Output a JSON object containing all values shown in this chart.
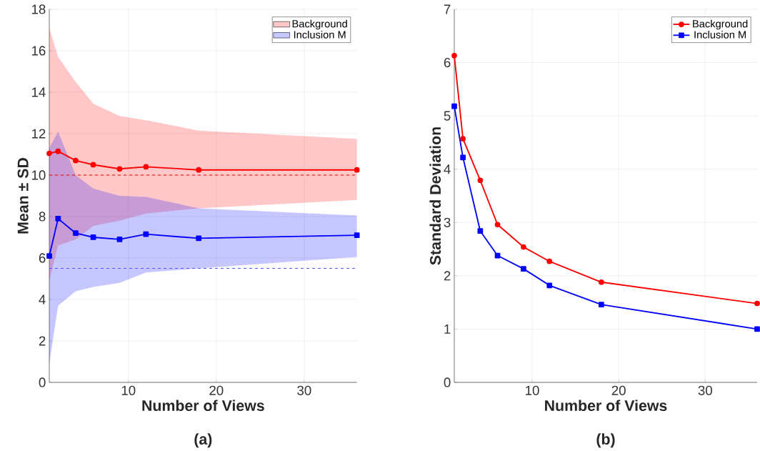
{
  "chart_data": [
    {
      "type": "line",
      "xlabel": "Number of Views",
      "ylabel": "Mean ± SD",
      "annotations": [
        "(a)"
      ],
      "x": [
        1,
        2,
        4,
        6,
        9,
        12,
        18,
        36
      ],
      "xlim": [
        1,
        36
      ],
      "xticks": [
        10,
        20,
        30
      ],
      "ylim": [
        0,
        18
      ],
      "yticks": [
        0,
        2,
        4,
        6,
        8,
        10,
        12,
        14,
        16,
        18
      ],
      "grid": true,
      "legend": "top right",
      "line_style": "solid",
      "series": [
        {
          "name": "Background",
          "color": "#ff0000",
          "marker": "circle",
          "values": [
            11.05,
            11.15,
            10.7,
            10.5,
            10.3,
            10.4,
            10.25,
            10.25
          ],
          "lower": [
            4.9,
            6.6,
            6.9,
            7.55,
            7.8,
            8.15,
            8.4,
            8.8
          ],
          "upper": [
            17.1,
            15.7,
            14.5,
            13.45,
            12.85,
            12.65,
            12.15,
            11.75
          ]
        },
        {
          "name": "Inclusion M",
          "color": "#0000ff",
          "marker": "square",
          "values": [
            6.1,
            7.9,
            7.2,
            7.0,
            6.9,
            7.15,
            6.95,
            7.1
          ],
          "lower": [
            0.9,
            3.7,
            4.4,
            4.6,
            4.8,
            5.3,
            5.5,
            6.05
          ],
          "upper": [
            11.3,
            12.1,
            10.0,
            9.35,
            9.0,
            8.95,
            8.4,
            8.05
          ]
        }
      ],
      "ref_lines": [
        {
          "axis": "y",
          "value": 10,
          "color": "#ff0000",
          "line_style": "dashed"
        },
        {
          "axis": "y",
          "value": 5.5,
          "color": "#5555ff",
          "line_style": "dashed"
        }
      ]
    },
    {
      "type": "line",
      "xlabel": "Number of Views",
      "ylabel": "Standard Deviation",
      "annotations": [
        "(b)"
      ],
      "x": [
        1,
        2,
        4,
        6,
        9,
        12,
        18,
        36
      ],
      "xlim": [
        1,
        36
      ],
      "xticks": [
        10,
        20,
        30
      ],
      "ylim": [
        0,
        7
      ],
      "yticks": [
        0,
        1,
        2,
        3,
        4,
        5,
        6,
        7
      ],
      "grid": true,
      "legend": "top right",
      "line_style": "solid",
      "series": [
        {
          "name": "Background",
          "color": "#ff0000",
          "marker": "circle",
          "values": [
            6.13,
            4.57,
            3.79,
            2.96,
            2.54,
            2.27,
            1.88,
            1.48
          ]
        },
        {
          "name": "Inclusion M",
          "color": "#0000ff",
          "marker": "square",
          "values": [
            5.18,
            4.22,
            2.84,
            2.38,
            2.13,
            1.82,
            1.46,
            1.0
          ]
        }
      ]
    }
  ]
}
